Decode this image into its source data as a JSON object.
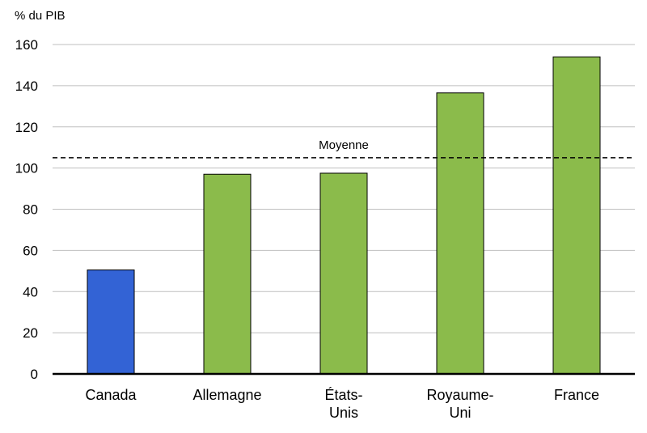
{
  "chart_data": {
    "type": "bar",
    "ylabel": "% du PIB",
    "ylim": [
      0,
      160
    ],
    "yticks": [
      0,
      20,
      40,
      60,
      80,
      100,
      120,
      140,
      160
    ],
    "grid": true,
    "categories": [
      [
        "Canada"
      ],
      [
        "Allemagne"
      ],
      [
        "États-",
        "Unis"
      ],
      [
        "Royaume-",
        "Uni"
      ],
      [
        "France"
      ]
    ],
    "values": [
      50.5,
      97,
      97.5,
      136.5,
      154
    ],
    "colors": [
      "#3363d5",
      "#8bbb4b",
      "#8bbb4b",
      "#8bbb4b",
      "#8bbb4b"
    ],
    "reference_line": {
      "label": "Moyenne",
      "value": 105,
      "style": "dashed"
    }
  }
}
